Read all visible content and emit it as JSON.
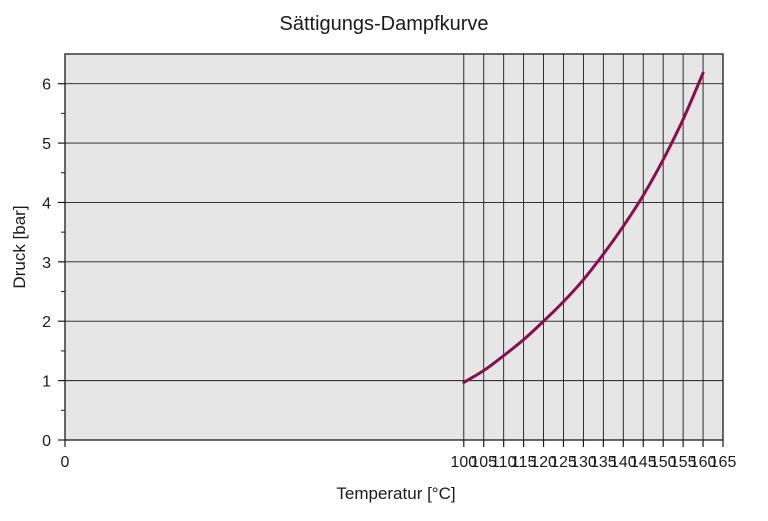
{
  "chart_data": {
    "type": "line",
    "title": "Sättigungs-Dampfkurve",
    "xlabel": "Temperatur [°C]",
    "ylabel": "Druck [bar]",
    "xlim": [
      0,
      165
    ],
    "ylim": [
      0,
      6.5
    ],
    "x_ticks": [
      0,
      100,
      105,
      110,
      115,
      120,
      125,
      130,
      135,
      140,
      145,
      150,
      155,
      160,
      165
    ],
    "y_ticks": [
      0,
      1,
      2,
      3,
      4,
      5,
      6
    ],
    "grid": true,
    "legend": "none",
    "colors": {
      "plot_background": "#e6e6e6",
      "grid": "#1a1a1a",
      "line": "#8b0d4e",
      "text": "#1a1a1a"
    },
    "series": [
      {
        "x": [
          100,
          105,
          110,
          115,
          120,
          125,
          130,
          135,
          140,
          145,
          150,
          155,
          160
        ],
        "values": [
          0.97,
          1.17,
          1.42,
          1.69,
          2.0,
          2.33,
          2.7,
          3.13,
          3.6,
          4.12,
          4.72,
          5.4,
          6.18
        ]
      }
    ]
  }
}
